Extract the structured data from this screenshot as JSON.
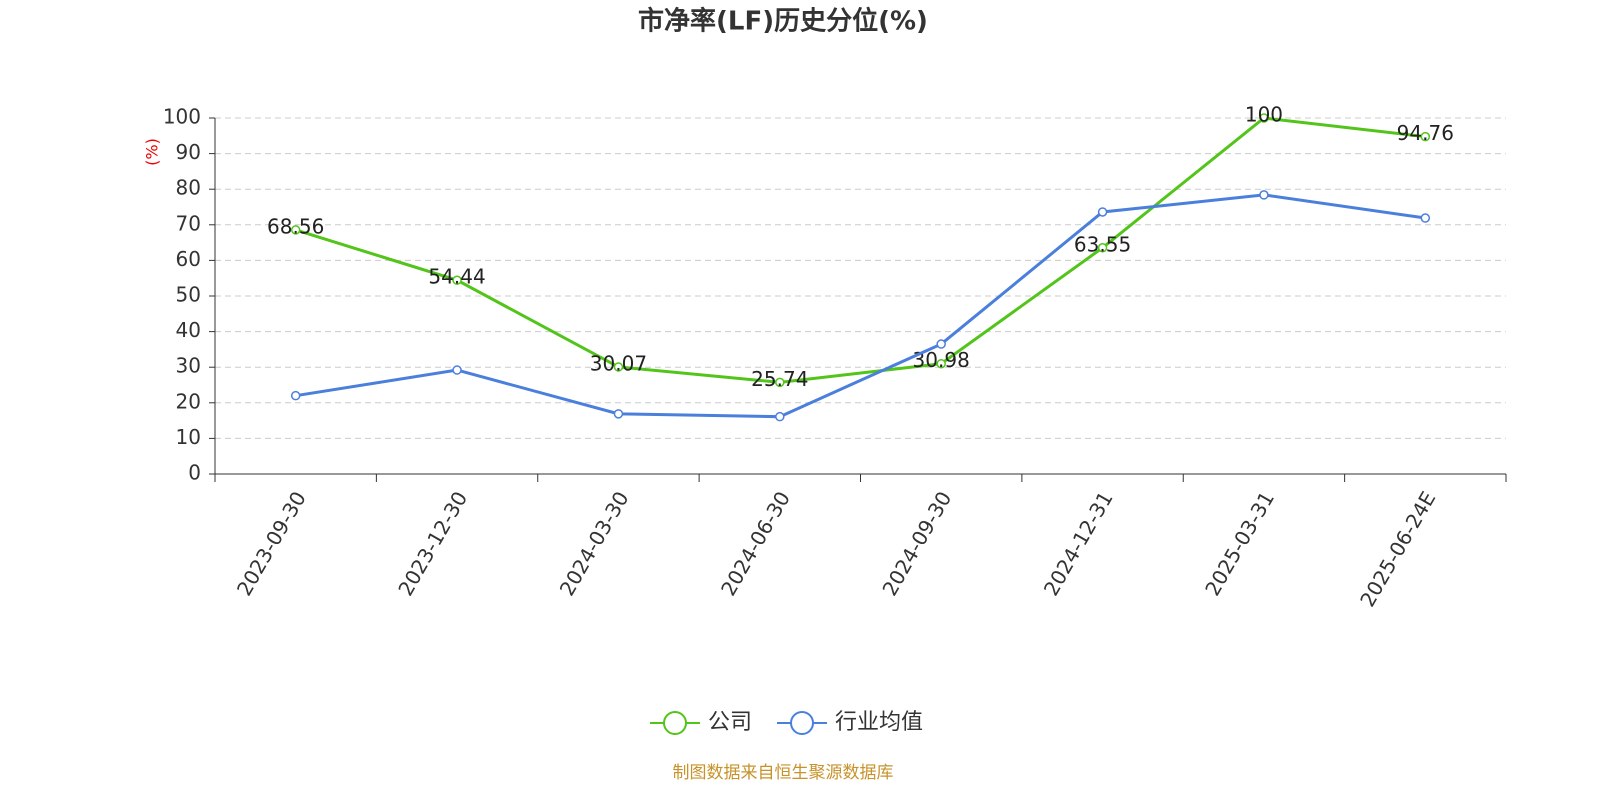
{
  "chart_data": {
    "type": "line",
    "title": "市净率(LF)历史分位(%)",
    "y_label": "(%)",
    "categories": [
      "2023-09-30",
      "2023-12-30",
      "2024-03-30",
      "2024-06-30",
      "2024-09-30",
      "2024-12-31",
      "2025-03-31",
      "2025-06-24E"
    ],
    "series": [
      {
        "name": "公司",
        "color": "#52c41a",
        "values": [
          68.56,
          54.44,
          30.07,
          25.74,
          30.98,
          63.55,
          100,
          94.76
        ],
        "labels": true
      },
      {
        "name": "行业均值",
        "color": "#4a7fdc",
        "values": [
          22,
          29.2,
          16.9,
          16.1,
          36.5,
          73.6,
          78.4,
          71.9
        ]
      }
    ],
    "ylim": [
      0,
      100
    ],
    "yticks": [
      0,
      10,
      20,
      30,
      40,
      50,
      60,
      70,
      80,
      90,
      100
    ],
    "grid": true,
    "source": "制图数据来自恒生聚源数据库"
  }
}
